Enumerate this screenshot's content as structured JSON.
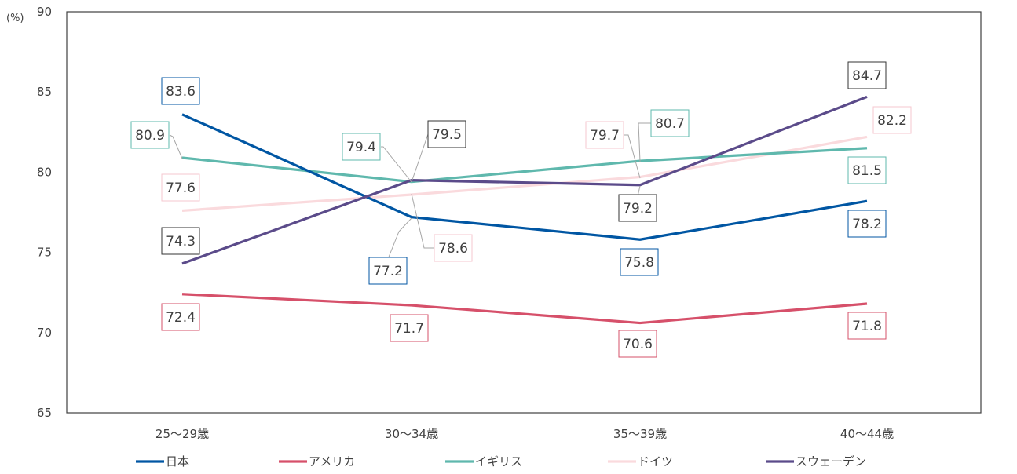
{
  "chart_data": {
    "type": "line",
    "title": "",
    "xlabel": "",
    "ylabel": "(%)",
    "ylim": [
      65,
      90
    ],
    "yticks": [
      65,
      70,
      75,
      80,
      85,
      90
    ],
    "grid": false,
    "legend_position": "bottom",
    "categories": [
      "25～29歳",
      "30～34歳",
      "35～39歳",
      "40～44歳"
    ],
    "series": [
      {
        "name": "日本",
        "color": "#0056a3",
        "values": [
          83.6,
          77.2,
          75.8,
          78.2
        ]
      },
      {
        "name": "アメリカ",
        "color": "#d6506a",
        "values": [
          72.4,
          71.7,
          70.6,
          71.8
        ]
      },
      {
        "name": "イギリス",
        "color": "#5fb8ad",
        "values": [
          80.9,
          79.4,
          80.7,
          81.5
        ]
      },
      {
        "name": "ドイツ",
        "color": "#fadadd",
        "values": [
          77.6,
          78.6,
          79.7,
          82.2
        ]
      },
      {
        "name": "スウェーデン",
        "color": "#5b4b8a",
        "values": [
          74.3,
          79.5,
          79.2,
          84.7
        ]
      }
    ]
  }
}
